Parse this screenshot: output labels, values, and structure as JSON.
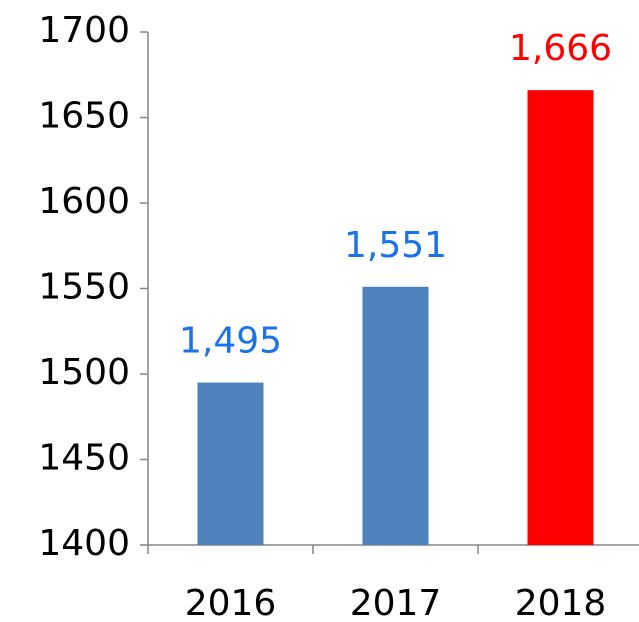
{
  "chart_data": {
    "type": "bar",
    "categories": [
      "2016",
      "2017",
      "2018"
    ],
    "values": [
      1495,
      1551,
      1666
    ],
    "value_labels": [
      "1,495",
      "1,551",
      "1,666"
    ],
    "colors": [
      "#4f81bd",
      "#4f81bd",
      "#ff0000"
    ],
    "label_colors": [
      "#1a73e8",
      "#1a73e8",
      "#ff0000"
    ],
    "ylim": [
      1400,
      1700
    ],
    "yticks": [
      1400,
      1450,
      1500,
      1550,
      1600,
      1650,
      1700
    ],
    "grid": false
  }
}
